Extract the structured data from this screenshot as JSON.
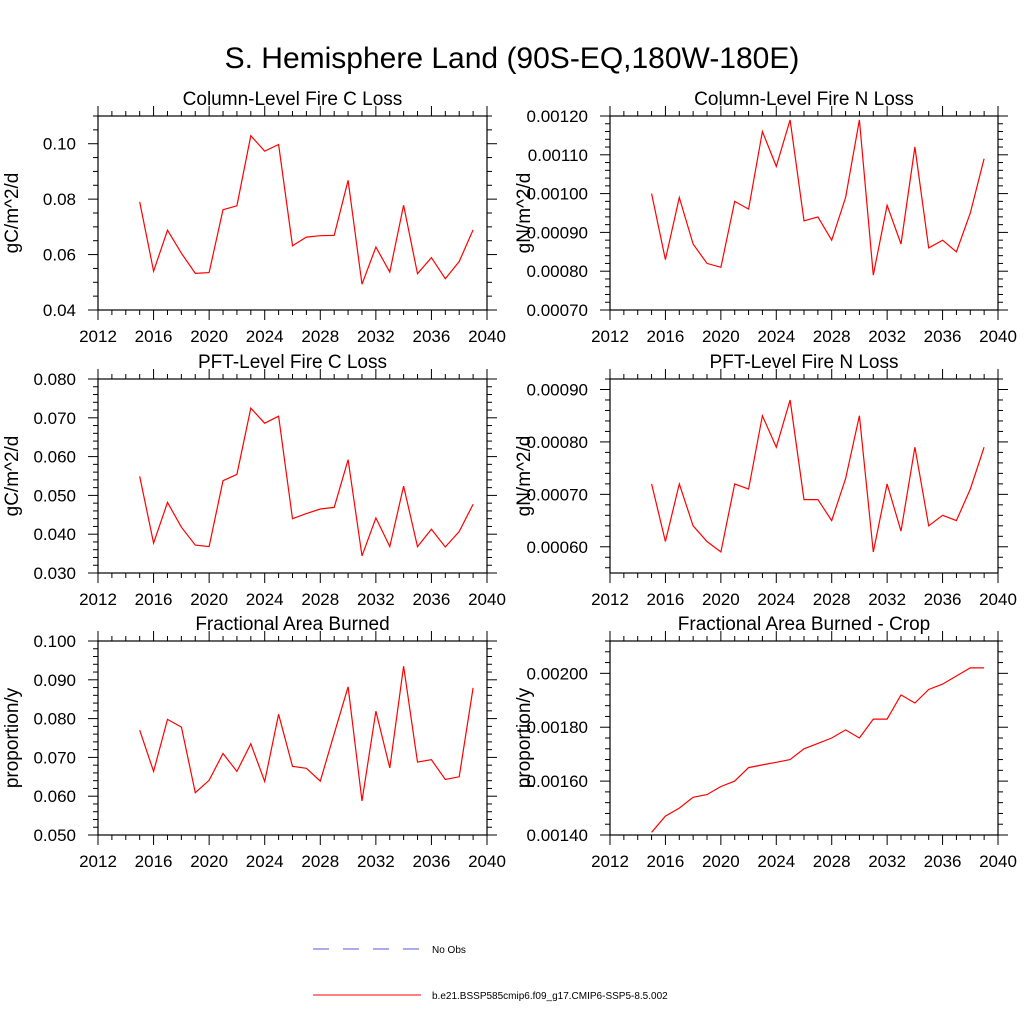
{
  "title": "S. Hemisphere Land (90S-EQ,180W-180E)",
  "legend": {
    "items": [
      {
        "label": "No Obs",
        "color": "#5a5ad6",
        "dashed": true
      },
      {
        "label": "b.e21.BSSP585cmip6.f09_g17.CMIP6-SSP5-8.5.002",
        "color": "#ff0000",
        "dashed": false
      }
    ]
  },
  "chart_data": [
    {
      "type": "line",
      "title": "Column-Level Fire C Loss",
      "ylabel": "gC/m^2/d",
      "xlim": [
        2012,
        2040
      ],
      "xticks": [
        2012,
        2016,
        2020,
        2024,
        2028,
        2032,
        2036,
        2040
      ],
      "xtick_labels": [
        "2012",
        "2016",
        "2020",
        "2024",
        "2028",
        "2032",
        "2036",
        "2040"
      ],
      "ylim": [
        0.04,
        0.11
      ],
      "yticks": [
        0.04,
        0.06,
        0.08,
        0.1
      ],
      "ytick_labels": [
        "0.04",
        "0.06",
        "0.08",
        "0.10"
      ],
      "yminor_step": 0.005,
      "color": "#ff0000",
      "x": [
        2015,
        2016,
        2017,
        2018,
        2019,
        2020,
        2021,
        2022,
        2023,
        2024,
        2025,
        2026,
        2027,
        2028,
        2029,
        2030,
        2031,
        2032,
        2033,
        2034,
        2035,
        2036,
        2037,
        2038,
        2039
      ],
      "values": [
        0.079,
        0.054,
        0.0688,
        0.0605,
        0.0532,
        0.0535,
        0.0762,
        0.0776,
        0.1029,
        0.0973,
        0.0997,
        0.0632,
        0.0663,
        0.0668,
        0.0669,
        0.0868,
        0.0493,
        0.0627,
        0.0537,
        0.0778,
        0.0531,
        0.0589,
        0.0513,
        0.0575,
        0.0689
      ]
    },
    {
      "type": "line",
      "title": "Column-Level Fire N Loss",
      "ylabel": "gN/m^2/d",
      "xlim": [
        2012,
        2040
      ],
      "xticks": [
        2012,
        2016,
        2020,
        2024,
        2028,
        2032,
        2036,
        2040
      ],
      "xtick_labels": [
        "2012",
        "2016",
        "2020",
        "2024",
        "2028",
        "2032",
        "2036",
        "2040"
      ],
      "ylim": [
        0.0007,
        0.0012
      ],
      "yticks": [
        0.0007,
        0.0008,
        0.0009,
        0.001,
        0.0011,
        0.0012
      ],
      "ytick_labels": [
        "0.00070",
        "0.00080",
        "0.00090",
        "0.00100",
        "0.00110",
        "0.00120"
      ],
      "yminor_step": 2e-05,
      "color": "#ff0000",
      "x": [
        2015,
        2016,
        2017,
        2018,
        2019,
        2020,
        2021,
        2022,
        2023,
        2024,
        2025,
        2026,
        2027,
        2028,
        2029,
        2030,
        2031,
        2032,
        2033,
        2034,
        2035,
        2036,
        2037,
        2038,
        2039
      ],
      "values": [
        0.001,
        0.00083,
        0.00099,
        0.00087,
        0.00082,
        0.00081,
        0.00098,
        0.00096,
        0.00116,
        0.00107,
        0.00119,
        0.00093,
        0.00094,
        0.00088,
        0.00099,
        0.00119,
        0.00079,
        0.00097,
        0.00087,
        0.00112,
        0.00086,
        0.00088,
        0.00085,
        0.00095,
        0.00109
      ]
    },
    {
      "type": "line",
      "title": "PFT-Level Fire C Loss",
      "ylabel": "gC/m^2/d",
      "xlim": [
        2012,
        2040
      ],
      "xticks": [
        2012,
        2016,
        2020,
        2024,
        2028,
        2032,
        2036,
        2040
      ],
      "xtick_labels": [
        "2012",
        "2016",
        "2020",
        "2024",
        "2028",
        "2032",
        "2036",
        "2040"
      ],
      "ylim": [
        0.03,
        0.08
      ],
      "yticks": [
        0.03,
        0.04,
        0.05,
        0.06,
        0.07,
        0.08
      ],
      "ytick_labels": [
        "0.030",
        "0.040",
        "0.050",
        "0.060",
        "0.070",
        "0.080"
      ],
      "yminor_step": 0.002,
      "color": "#ff0000",
      "x": [
        2015,
        2016,
        2017,
        2018,
        2019,
        2020,
        2021,
        2022,
        2023,
        2024,
        2025,
        2026,
        2027,
        2028,
        2029,
        2030,
        2031,
        2032,
        2033,
        2034,
        2035,
        2036,
        2037,
        2038,
        2039
      ],
      "values": [
        0.0549,
        0.0377,
        0.0482,
        0.0418,
        0.0372,
        0.0368,
        0.0538,
        0.0554,
        0.0725,
        0.0686,
        0.0704,
        0.044,
        0.0453,
        0.0465,
        0.0469,
        0.0592,
        0.0344,
        0.0442,
        0.0368,
        0.0524,
        0.0368,
        0.0413,
        0.0367,
        0.0407,
        0.0477
      ]
    },
    {
      "type": "line",
      "title": "PFT-Level Fire N Loss",
      "ylabel": "gN/m^2/d",
      "xlim": [
        2012,
        2040
      ],
      "xticks": [
        2012,
        2016,
        2020,
        2024,
        2028,
        2032,
        2036,
        2040
      ],
      "xtick_labels": [
        "2012",
        "2016",
        "2020",
        "2024",
        "2028",
        "2032",
        "2036",
        "2040"
      ],
      "ylim": [
        0.00055,
        0.00092
      ],
      "yticks": [
        0.0006,
        0.0007,
        0.0008,
        0.0009
      ],
      "ytick_labels": [
        "0.00060",
        "0.00070",
        "0.00080",
        "0.00090"
      ],
      "yminor_step": 2e-05,
      "color": "#ff0000",
      "x": [
        2015,
        2016,
        2017,
        2018,
        2019,
        2020,
        2021,
        2022,
        2023,
        2024,
        2025,
        2026,
        2027,
        2028,
        2029,
        2030,
        2031,
        2032,
        2033,
        2034,
        2035,
        2036,
        2037,
        2038,
        2039
      ],
      "values": [
        0.00072,
        0.00061,
        0.00072,
        0.00064,
        0.00061,
        0.00059,
        0.00072,
        0.00071,
        0.00085,
        0.00079,
        0.00088,
        0.00069,
        0.00069,
        0.00065,
        0.00073,
        0.00085,
        0.00059,
        0.00072,
        0.00063,
        0.00079,
        0.00064,
        0.00066,
        0.00065,
        0.00071,
        0.00079
      ]
    },
    {
      "type": "line",
      "title": "Fractional Area Burned",
      "ylabel": "proportion/y",
      "xlim": [
        2012,
        2040
      ],
      "xticks": [
        2012,
        2016,
        2020,
        2024,
        2028,
        2032,
        2036,
        2040
      ],
      "xtick_labels": [
        "2012",
        "2016",
        "2020",
        "2024",
        "2028",
        "2032",
        "2036",
        "2040"
      ],
      "ylim": [
        0.05,
        0.1
      ],
      "yticks": [
        0.05,
        0.06,
        0.07,
        0.08,
        0.09,
        0.1
      ],
      "ytick_labels": [
        "0.050",
        "0.060",
        "0.070",
        "0.080",
        "0.090",
        "0.100"
      ],
      "yminor_step": 0.002,
      "color": "#ff0000",
      "x": [
        2015,
        2016,
        2017,
        2018,
        2019,
        2020,
        2021,
        2022,
        2023,
        2024,
        2025,
        2026,
        2027,
        2028,
        2029,
        2030,
        2031,
        2032,
        2033,
        2034,
        2035,
        2036,
        2037,
        2038,
        2039
      ],
      "values": [
        0.077,
        0.0664,
        0.0798,
        0.0778,
        0.0609,
        0.0641,
        0.071,
        0.0664,
        0.0735,
        0.0638,
        0.0811,
        0.0677,
        0.0672,
        0.0639,
        0.0761,
        0.0882,
        0.0588,
        0.0819,
        0.0673,
        0.0935,
        0.0688,
        0.0694,
        0.0643,
        0.065,
        0.0879
      ]
    },
    {
      "type": "line",
      "title": "Fractional Area Burned - Crop",
      "ylabel": "proportion/y",
      "xlim": [
        2012,
        2040
      ],
      "xticks": [
        2012,
        2016,
        2020,
        2024,
        2028,
        2032,
        2036,
        2040
      ],
      "xtick_labels": [
        "2012",
        "2016",
        "2020",
        "2024",
        "2028",
        "2032",
        "2036",
        "2040"
      ],
      "ylim": [
        0.0014,
        0.00212
      ],
      "yticks": [
        0.0014,
        0.0016,
        0.0018,
        0.002
      ],
      "ytick_labels": [
        "0.00140",
        "0.00160",
        "0.00180",
        "0.00200"
      ],
      "yminor_step": 4e-05,
      "color": "#ff0000",
      "x": [
        2015,
        2016,
        2017,
        2018,
        2019,
        2020,
        2021,
        2022,
        2023,
        2024,
        2025,
        2026,
        2027,
        2028,
        2029,
        2030,
        2031,
        2032,
        2033,
        2034,
        2035,
        2036,
        2037,
        2038,
        2039
      ],
      "values": [
        0.00141,
        0.00147,
        0.0015,
        0.00154,
        0.00155,
        0.00158,
        0.0016,
        0.00165,
        0.00166,
        0.00167,
        0.00168,
        0.00172,
        0.00174,
        0.00176,
        0.00179,
        0.00176,
        0.00183,
        0.00183,
        0.00192,
        0.00189,
        0.00194,
        0.00196,
        0.00199,
        0.00202,
        0.00202
      ]
    }
  ]
}
